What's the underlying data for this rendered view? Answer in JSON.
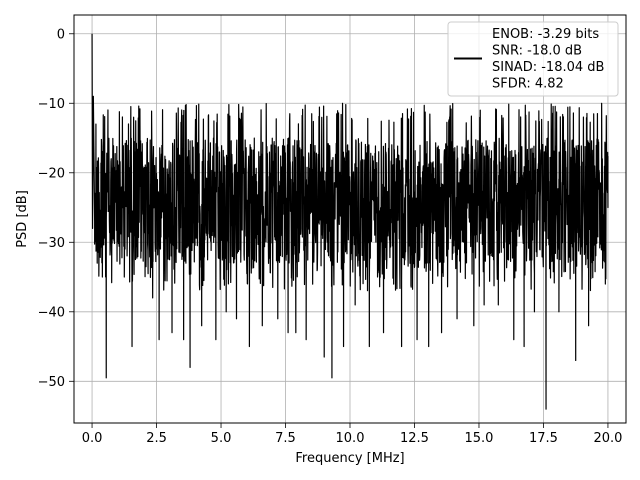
{
  "chart_data": {
    "type": "line",
    "title": "",
    "xlabel": "Frequency [MHz]",
    "ylabel": "PSD [dB]",
    "xlim": [
      -0.7,
      20.7
    ],
    "ylim": [
      -56,
      2.7
    ],
    "xticks": [
      0.0,
      2.5,
      5.0,
      7.5,
      10.0,
      12.5,
      15.0,
      17.5,
      20.0
    ],
    "xtick_labels": [
      "0.0",
      "2.5",
      "5.0",
      "7.5",
      "10.0",
      "12.5",
      "15.0",
      "17.5",
      "20.0"
    ],
    "yticks": [
      0,
      -10,
      -20,
      -30,
      -40,
      -50
    ],
    "ytick_labels": [
      "0",
      "−10",
      "−20",
      "−30",
      "−40",
      "−50"
    ],
    "grid": true,
    "legend_position": "top-right",
    "series_color": "#000000",
    "series": [
      {
        "name": "ENOB: -3.29 bits\nSNR: -18.0 dB\nSINAD: -18.04 dB\nSFDR: 4.82",
        "legend_lines": [
          "ENOB: -3.29 bits",
          "SNR: -18.0 dB",
          "SINAD: -18.04 dB",
          "SFDR: 4.82"
        ],
        "x": [
          0.0,
          0.02,
          0.05,
          0.1,
          0.15,
          0.2,
          0.4,
          0.55,
          1.25,
          1.55,
          2.35,
          2.6,
          3.1,
          3.55,
          3.8,
          4.25,
          4.8,
          5.2,
          5.6,
          6.1,
          6.6,
          7.2,
          7.6,
          7.9,
          8.3,
          9.0,
          9.3,
          9.75,
          10.2,
          10.75,
          11.3,
          12.0,
          12.6,
          13.05,
          13.55,
          14.15,
          14.8,
          15.2,
          15.75,
          16.35,
          16.75,
          17.15,
          17.6,
          18.1,
          18.75,
          19.25,
          19.9,
          20.0
        ],
        "y": [
          0,
          -28,
          -9,
          -27,
          -13,
          -33,
          -35,
          -49.5,
          -35,
          -45,
          -38,
          -44,
          -43,
          -44,
          -48,
          -42,
          -44,
          -40,
          -41,
          -45,
          -42,
          -41,
          -43,
          -43,
          -44,
          -46.5,
          -49.5,
          -45,
          -39,
          -45,
          -43,
          -45,
          -44,
          -45,
          -43,
          -41,
          -42,
          -39,
          -39,
          -44,
          -45,
          -40,
          -54,
          -40,
          -47,
          -42,
          -36,
          -25
        ],
        "band": {
          "x_start": 0.1,
          "x_end": 20.0,
          "upper_typical": -15,
          "upper_peak": -10,
          "lower_typical": -33,
          "center": -24
        }
      }
    ]
  }
}
